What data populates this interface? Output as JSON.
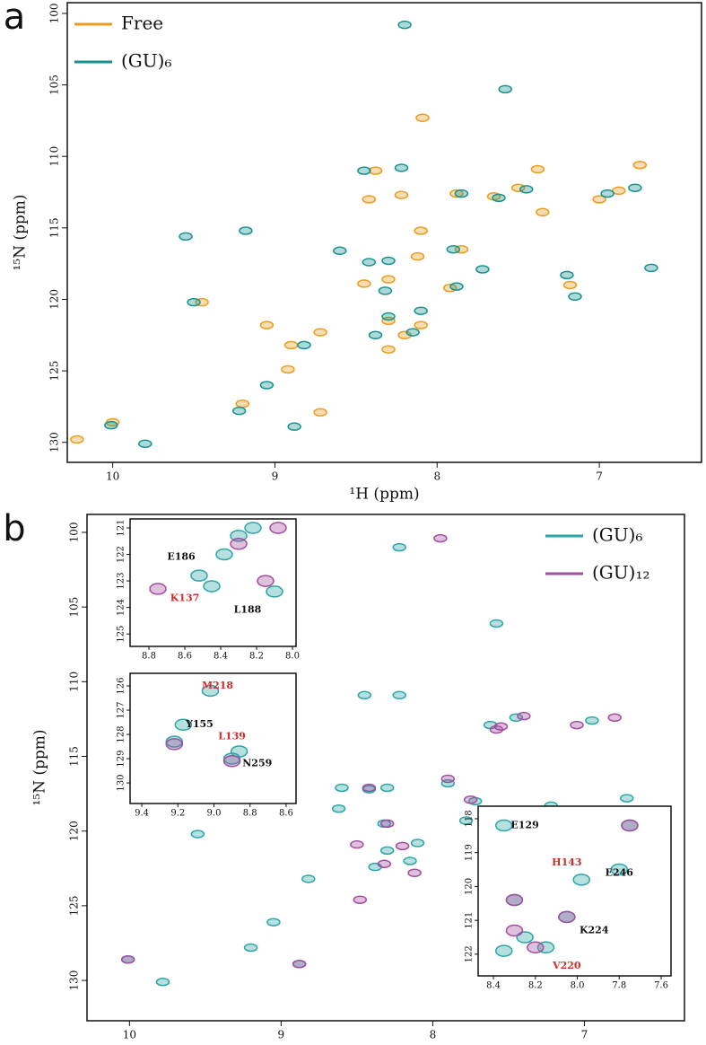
{
  "chart_data": [
    {
      "type": "scatter",
      "panel": "a",
      "xlabel": "¹H (ppm)",
      "ylabel": "¹⁵N (ppm)",
      "xlim": [
        10.28,
        6.37
      ],
      "ylim": [
        131.4,
        99.25
      ],
      "xticks": [
        10,
        9,
        8,
        7
      ],
      "yticks": [
        100,
        105,
        110,
        115,
        120,
        125,
        130
      ],
      "legend": "upper left",
      "series": [
        {
          "name": "Free",
          "color": "#e89d1f",
          "x": [
            10.22,
            10.0,
            9.45,
            9.2,
            9.05,
            8.9,
            8.92,
            8.72,
            8.72,
            8.42,
            8.3,
            8.22,
            8.1,
            8.12,
            8.09,
            8.3,
            8.2,
            8.1,
            8.3,
            7.92,
            7.85,
            7.88,
            7.65,
            7.5,
            7.38,
            7.35,
            7.18,
            7.0,
            6.88,
            6.75,
            8.45,
            8.38
          ],
          "values": [
            129.8,
            128.6,
            120.2,
            127.3,
            121.8,
            123.2,
            124.9,
            122.3,
            127.9,
            113.0,
            118.6,
            112.7,
            115.2,
            117.0,
            107.3,
            121.5,
            122.5,
            121.8,
            123.5,
            119.2,
            116.5,
            112.6,
            112.8,
            112.2,
            110.9,
            113.9,
            119.0,
            113.0,
            112.4,
            110.6,
            118.9,
            111.0
          ]
        },
        {
          "name": "(GU)₆",
          "color": "#17928f",
          "x": [
            10.01,
            9.8,
            9.5,
            9.22,
            9.05,
            8.88,
            8.82,
            8.6,
            8.42,
            8.45,
            8.38,
            8.3,
            8.15,
            8.32,
            8.3,
            8.1,
            8.22,
            7.9,
            7.88,
            7.85,
            7.72,
            7.62,
            7.45,
            7.2,
            7.15,
            6.95,
            6.78,
            6.68,
            8.2,
            7.58,
            9.55,
            9.18
          ],
          "values": [
            128.8,
            130.1,
            120.2,
            127.8,
            126.0,
            128.9,
            123.2,
            116.6,
            117.4,
            111.0,
            122.5,
            121.2,
            122.3,
            119.4,
            117.3,
            120.8,
            110.8,
            116.5,
            119.1,
            112.6,
            117.9,
            112.9,
            112.3,
            118.3,
            119.8,
            112.6,
            112.2,
            117.8,
            100.8,
            105.3,
            115.6,
            115.2
          ]
        }
      ]
    },
    {
      "type": "scatter",
      "panel": "b",
      "xlabel": "¹H (ppm)",
      "ylabel": "¹⁵N (ppm)",
      "xlim": [
        10.28,
        6.34
      ],
      "ylim": [
        132.7,
        98.8
      ],
      "xticks": [
        10,
        9,
        8,
        7
      ],
      "yticks": [
        100,
        105,
        110,
        115,
        120,
        125,
        130
      ],
      "legend": "upper right",
      "series": [
        {
          "name": "(GU)₆",
          "color": "#2aa6a4",
          "x": [
            10.01,
            9.78,
            9.55,
            9.2,
            9.05,
            8.88,
            8.82,
            8.6,
            8.62,
            8.42,
            8.45,
            8.38,
            8.3,
            8.15,
            8.32,
            8.3,
            8.1,
            8.22,
            7.9,
            7.78,
            7.72,
            7.62,
            7.45,
            7.22,
            6.95,
            6.72,
            8.22,
            7.58
          ],
          "values": [
            128.6,
            130.1,
            120.2,
            127.8,
            126.1,
            128.9,
            123.2,
            117.1,
            118.5,
            117.2,
            110.9,
            122.4,
            121.3,
            122.0,
            119.5,
            117.1,
            120.8,
            110.9,
            116.8,
            119.3,
            118.0,
            112.9,
            112.4,
            118.3,
            112.6,
            117.8,
            101.0,
            106.1
          ]
        },
        {
          "name": "(GU)₁₂",
          "color": "#a24d9f",
          "x": [
            10.01,
            8.88,
            8.48,
            8.42,
            8.32,
            8.2,
            8.12,
            8.3,
            7.9,
            7.75,
            7.55,
            7.4,
            7.05,
            6.8,
            7.95,
            7.58,
            8.5
          ],
          "values": [
            128.6,
            128.9,
            124.6,
            117.1,
            122.2,
            121.0,
            122.8,
            119.5,
            116.5,
            117.9,
            113.0,
            112.3,
            112.9,
            112.4,
            100.4,
            113.2,
            120.9
          ]
        }
      ]
    },
    {
      "type": "scatter",
      "xlim": [
        8.905,
        7.98
      ],
      "ylim": [
        125.47,
        120.66
      ],
      "xticks": [
        8.8,
        8.6,
        8.4,
        8.2,
        {
          "value": 8,
          "label": "8.0"
        }
      ],
      "yticks": [
        121,
        122,
        123,
        124,
        125
      ],
      "series": [
        {
          "color": "#2aa6a4",
          "x": [
            8.3,
            8.38,
            8.22,
            8.45,
            8.1,
            8.52
          ],
          "values": [
            121.3,
            122.0,
            121.0,
            123.2,
            123.4,
            122.8
          ]
        },
        {
          "color": "#a24d9f",
          "x": [
            8.15,
            8.3,
            8.75,
            8.08
          ],
          "values": [
            123.0,
            121.6,
            123.3,
            121.0
          ]
        }
      ],
      "annotations": [
        {
          "text": "E186",
          "x": 8.62,
          "y": 122.1,
          "color": "#111111"
        },
        {
          "text": "K137",
          "x": 8.6,
          "y": 123.65,
          "color": "#d62a2a"
        },
        {
          "text": "L188",
          "x": 8.25,
          "y": 124.1,
          "color": "#111111"
        }
      ]
    },
    {
      "type": "scatter",
      "xlim": [
        9.465,
        8.545
      ],
      "ylim": [
        130.85,
        125.48
      ],
      "xticks": [
        9.4,
        9.2,
        {
          "value": 9,
          "label": "9.0"
        },
        8.8,
        8.6
      ],
      "yticks": [
        126,
        127,
        128,
        129,
        130
      ],
      "series": [
        {
          "color": "#2aa6a4",
          "x": [
            9.02,
            9.22,
            9.17,
            8.9,
            8.86
          ],
          "values": [
            126.2,
            128.3,
            127.6,
            129.0,
            128.7
          ]
        },
        {
          "color": "#a24d9f",
          "x": [
            9.22,
            8.9
          ],
          "values": [
            128.4,
            129.1
          ]
        }
      ],
      "annotations": [
        {
          "text": "M218",
          "x": 8.98,
          "y": 126.0,
          "color": "#d62a2a"
        },
        {
          "text": "Y155",
          "x": 9.08,
          "y": 127.6,
          "color": "#111111"
        },
        {
          "text": "L139",
          "x": 8.9,
          "y": 128.1,
          "color": "#d62a2a"
        },
        {
          "text": "N259",
          "x": 8.76,
          "y": 129.2,
          "color": "#111111"
        }
      ]
    },
    {
      "type": "scatter",
      "xlim": [
        8.473,
        7.553
      ],
      "ylim": [
        122.64,
        117.63
      ],
      "xticks": [
        8.4,
        8.2,
        {
          "value": 8,
          "label": "8.0"
        },
        7.8,
        7.6
      ],
      "yticks": [
        118,
        119,
        120,
        121,
        122
      ],
      "series": [
        {
          "color": "#2aa6a4",
          "x": [
            8.35,
            7.75,
            7.8,
            7.98,
            8.3,
            8.05,
            8.25,
            8.35,
            8.15
          ],
          "values": [
            118.2,
            118.2,
            119.5,
            119.8,
            120.4,
            120.9,
            121.5,
            121.9,
            121.8
          ]
        },
        {
          "color": "#a24d9f",
          "x": [
            8.3,
            8.2,
            8.05,
            8.3,
            7.75
          ],
          "values": [
            120.4,
            121.8,
            120.9,
            121.3,
            118.2
          ]
        }
      ],
      "annotations": [
        {
          "text": "E129",
          "x": 8.25,
          "y": 118.2,
          "color": "#111111"
        },
        {
          "text": "H143",
          "x": 8.05,
          "y": 119.3,
          "color": "#d62a2a"
        },
        {
          "text": "E246",
          "x": 7.8,
          "y": 119.6,
          "color": "#111111"
        },
        {
          "text": "K224",
          "x": 7.92,
          "y": 121.3,
          "color": "#111111"
        },
        {
          "text": "V220",
          "x": 8.05,
          "y": 122.35,
          "color": "#d62a2a"
        }
      ]
    }
  ]
}
